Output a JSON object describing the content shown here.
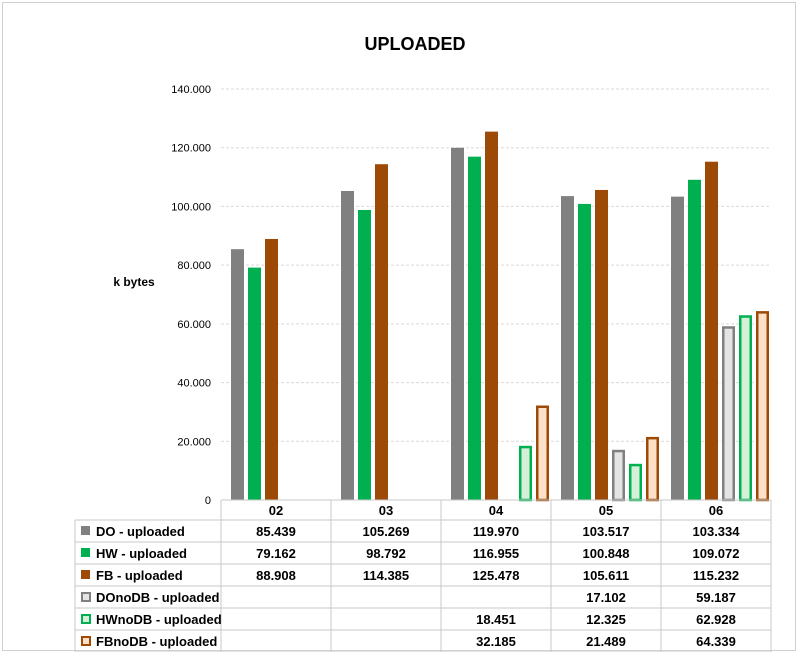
{
  "chart_data": {
    "type": "bar",
    "title": "UPLOADED",
    "xlabel": "",
    "ylabel": "k bytes",
    "ylim": [
      0,
      140000
    ],
    "yticks": [
      0,
      20000,
      40000,
      60000,
      80000,
      100000,
      120000,
      140000
    ],
    "ytick_labels": [
      "0",
      "20.000",
      "40.000",
      "60.000",
      "80.000",
      "100.000",
      "120.000",
      "140.000"
    ],
    "grid": true,
    "legend": "data-table-below",
    "categories": [
      "02",
      "03",
      "04",
      "05",
      "06"
    ],
    "series": [
      {
        "name": "DO - uploaded",
        "style": "solid",
        "color": "#808080",
        "values": [
          85439,
          105269,
          119970,
          103517,
          103334
        ],
        "labels": [
          "85.439",
          "105.269",
          "119.970",
          "103.517",
          "103.334"
        ]
      },
      {
        "name": "HW - uploaded",
        "style": "solid",
        "color": "#00b050",
        "values": [
          79162,
          98792,
          116955,
          100848,
          109072
        ],
        "labels": [
          "79.162",
          "98.792",
          "116.955",
          "100.848",
          "109.072"
        ]
      },
      {
        "name": "FB - uploaded",
        "style": "solid",
        "color": "#9c4a06",
        "values": [
          88908,
          114385,
          125478,
          105611,
          115232
        ],
        "labels": [
          "88.908",
          "114.385",
          "125.478",
          "105.611",
          "115.232"
        ]
      },
      {
        "name": "DOnoDB - uploaded",
        "style": "outline",
        "color": "#808080",
        "fill": "#e4e4e4",
        "values": [
          null,
          null,
          null,
          17102,
          59187
        ],
        "labels": [
          "",
          "",
          "",
          "17.102",
          "59.187"
        ]
      },
      {
        "name": "HWnoDB - uploaded",
        "style": "outline",
        "color": "#00b050",
        "fill": "#d6f0d8",
        "values": [
          null,
          null,
          18451,
          12325,
          62928
        ],
        "labels": [
          "",
          "",
          "18.451",
          "12.325",
          "62.928"
        ]
      },
      {
        "name": "FBnoDB - uploaded",
        "style": "outline",
        "color": "#9c4a06",
        "fill": "#fce0c8",
        "values": [
          null,
          null,
          32185,
          21489,
          64339
        ],
        "labels": [
          "",
          "",
          "32.185",
          "21.489",
          "64.339"
        ]
      }
    ]
  }
}
